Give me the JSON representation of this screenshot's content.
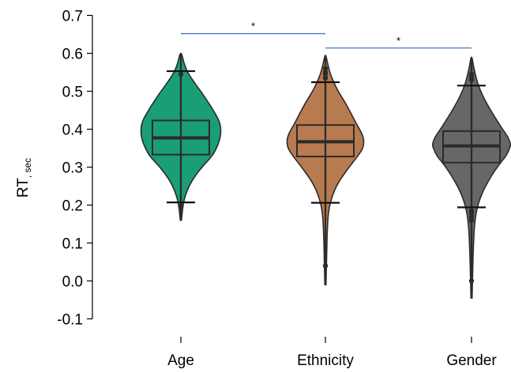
{
  "chart_data": {
    "type": "violin",
    "ylabel_main": "RT",
    "ylabel_sub": ", sec",
    "ylim": [
      -0.1,
      0.7
    ],
    "yticks": [
      "0.7",
      "0.6",
      "0.5",
      "0.4",
      "0.3",
      "0.2",
      "0.1",
      "0.0",
      "-0.1"
    ],
    "ytick_values": [
      0.7,
      0.6,
      0.5,
      0.4,
      0.3,
      0.2,
      0.1,
      0.0,
      -0.1
    ],
    "categories": [
      "Age",
      "Ethnicity",
      "Gender"
    ],
    "colors": {
      "Age": "#1a9e77",
      "Ethnicity": "#b87a4f",
      "Gender": "#676767",
      "edge": "#2b2b2b",
      "bracket": "#4a74c9"
    },
    "series": [
      {
        "category": "Age",
        "q1": 0.333,
        "median": 0.377,
        "q3": 0.423,
        "whisker_low": 0.207,
        "whisker_high": 0.553,
        "min": 0.16,
        "max": 0.6,
        "outliers": [
          0.545,
          0.197
        ],
        "density": [
          [
            0.16,
            0.2
          ],
          [
            0.19,
            0.6
          ],
          [
            0.22,
            1.3
          ],
          [
            0.26,
            3.5
          ],
          [
            0.3,
            7.5
          ],
          [
            0.33,
            11.5
          ],
          [
            0.36,
            13.5
          ],
          [
            0.38,
            14.3
          ],
          [
            0.4,
            14.5
          ],
          [
            0.42,
            14.0
          ],
          [
            0.44,
            12.5
          ],
          [
            0.47,
            10.0
          ],
          [
            0.5,
            7.2
          ],
          [
            0.53,
            4.2
          ],
          [
            0.55,
            2.4
          ],
          [
            0.57,
            1.3
          ],
          [
            0.59,
            0.6
          ],
          [
            0.6,
            0.2
          ]
        ]
      },
      {
        "category": "Ethnicity",
        "q1": 0.328,
        "median": 0.367,
        "q3": 0.411,
        "whisker_low": 0.206,
        "whisker_high": 0.524,
        "min": -0.01,
        "max": 0.595,
        "outliers": [
          0.04,
          0.535,
          0.545,
          0.55,
          0.56
        ],
        "density": [
          [
            -0.01,
            0.2
          ],
          [
            0.05,
            0.4
          ],
          [
            0.12,
            0.6
          ],
          [
            0.18,
            1.0
          ],
          [
            0.22,
            2.2
          ],
          [
            0.26,
            4.6
          ],
          [
            0.3,
            8.6
          ],
          [
            0.33,
            11.8
          ],
          [
            0.35,
            13.6
          ],
          [
            0.37,
            14.0
          ],
          [
            0.39,
            13.2
          ],
          [
            0.41,
            11.5
          ],
          [
            0.44,
            9.4
          ],
          [
            0.47,
            7.2
          ],
          [
            0.5,
            4.6
          ],
          [
            0.53,
            2.6
          ],
          [
            0.55,
            1.6
          ],
          [
            0.57,
            0.9
          ],
          [
            0.595,
            0.2
          ]
        ]
      },
      {
        "category": "Gender",
        "q1": 0.312,
        "median": 0.356,
        "q3": 0.395,
        "whisker_low": 0.194,
        "whisker_high": 0.515,
        "min": -0.045,
        "max": 0.59,
        "outliers": [
          0.0,
          0.16,
          0.17,
          0.18,
          0.185,
          0.53,
          0.54,
          0.545
        ],
        "density": [
          [
            -0.045,
            0.2
          ],
          [
            0.02,
            0.4
          ],
          [
            0.1,
            0.7
          ],
          [
            0.16,
            1.2
          ],
          [
            0.2,
            2.2
          ],
          [
            0.24,
            4.3
          ],
          [
            0.28,
            7.4
          ],
          [
            0.31,
            10.3
          ],
          [
            0.33,
            12.6
          ],
          [
            0.35,
            13.8
          ],
          [
            0.36,
            14.2
          ],
          [
            0.38,
            13.2
          ],
          [
            0.4,
            11.2
          ],
          [
            0.43,
            8.6
          ],
          [
            0.46,
            6.1
          ],
          [
            0.49,
            3.9
          ],
          [
            0.52,
            2.2
          ],
          [
            0.55,
            1.2
          ],
          [
            0.57,
            0.6
          ],
          [
            0.59,
            0.2
          ]
        ]
      }
    ],
    "significance": [
      {
        "from": "Age",
        "to": "Ethnicity",
        "y": 0.652,
        "label": "*"
      },
      {
        "from": "Ethnicity",
        "to": "Gender",
        "y": 0.614,
        "label": "*"
      }
    ]
  }
}
